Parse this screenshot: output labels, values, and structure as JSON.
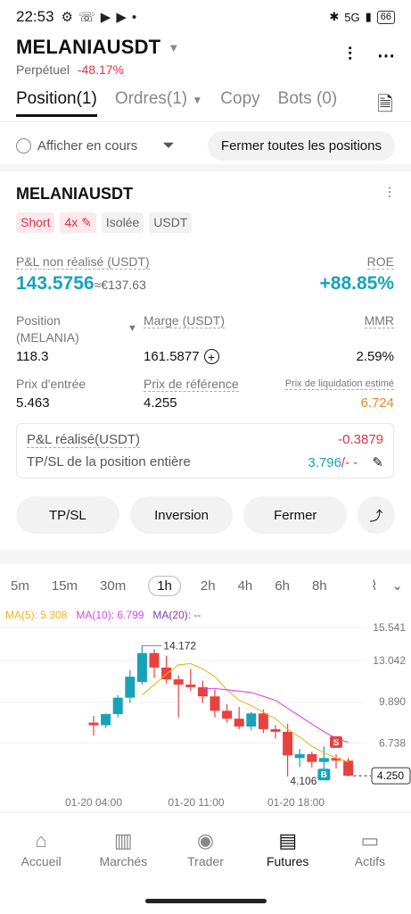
{
  "status_bar": {
    "time": "22:53",
    "signal": "5G",
    "battery": "66"
  },
  "header": {
    "symbol": "MELANIAUSDT",
    "contract_type": "Perpétuel",
    "change": "-48.17%"
  },
  "tabs": [
    "Position(1)",
    "Ordres(1)",
    "Copy",
    "Bots (0)"
  ],
  "filter": {
    "show_current_label": "Afficher en cours",
    "close_all_label": "Fermer toutes les positions"
  },
  "position": {
    "symbol": "MELANIAUSDT",
    "badges": {
      "side": "Short",
      "leverage": "4x",
      "margin_mode": "Isolée",
      "quote": "USDT"
    },
    "pnl_label": "P&L non réalisé (USDT)",
    "pnl_value": "143.5756",
    "pnl_eur": "≈€137.63",
    "roe_label": "ROE",
    "roe_value": "+88.85%",
    "size_label": "Position",
    "size_unit": "(MELANIA)",
    "size_value": "118.3",
    "margin_label": "Marge (USDT)",
    "margin_value": "161.5877",
    "mmr_label": "MMR",
    "mmr_value": "2.59%",
    "entry_label": "Prix d'entrée",
    "entry_value": "5.463",
    "mark_label": "Prix de référence",
    "mark_value": "4.255",
    "liq_label": "Prix de liquidation estimé",
    "liq_value": "6.724",
    "realized_label": "P&L réalisé(USDT)",
    "realized_value": "-0.3879",
    "tpsl_label": "TP/SL de la position entière",
    "tp_value": "3.796",
    "sl_value": "/- -"
  },
  "actions": {
    "tpsl": "TP/SL",
    "reverse": "Inversion",
    "close": "Fermer"
  },
  "intervals": [
    "5m",
    "15m",
    "30m",
    "1h",
    "2h",
    "4h",
    "6h",
    "8h"
  ],
  "active_interval": "1h",
  "ma": {
    "ma5": "MA(5): 5.308",
    "ma10": "MA(10): 6.799",
    "ma20": "MA(20): --"
  },
  "chart_data": {
    "type": "candlestick",
    "price_ticks": [
      "15.541",
      "13.042",
      "9.890",
      "6.738"
    ],
    "price_tick_values": [
      15.541,
      13.042,
      9.89,
      6.738
    ],
    "ylim": [
      3.1,
      16.3
    ],
    "time_ticks": [
      "01-20 04:00",
      "01-20 11:00",
      "01-20 18:00"
    ],
    "high_label": "14.172",
    "low_label": "4.106",
    "last_price": "4.250",
    "last_price_value": 4.25,
    "colors": {
      "up": "#17a2b8",
      "down": "#e8423f",
      "ma5": "#f0b323",
      "ma10": "#d946ef"
    },
    "candles": [
      {
        "o": 8.3,
        "h": 8.8,
        "l": 7.3,
        "c": 8.1
      },
      {
        "o": 8.1,
        "h": 9.0,
        "l": 7.9,
        "c": 8.95
      },
      {
        "o": 8.95,
        "h": 10.4,
        "l": 8.7,
        "c": 10.2
      },
      {
        "o": 10.2,
        "h": 12.3,
        "l": 9.8,
        "c": 11.8
      },
      {
        "o": 11.4,
        "h": 14.172,
        "l": 11.2,
        "c": 13.6
      },
      {
        "o": 13.6,
        "h": 13.9,
        "l": 11.7,
        "c": 12.5
      },
      {
        "o": 12.5,
        "h": 13.4,
        "l": 11.3,
        "c": 11.6
      },
      {
        "o": 11.6,
        "h": 11.9,
        "l": 8.7,
        "c": 11.2
      },
      {
        "o": 11.2,
        "h": 12.4,
        "l": 10.7,
        "c": 11.0
      },
      {
        "o": 11.0,
        "h": 11.5,
        "l": 9.8,
        "c": 10.3
      },
      {
        "o": 10.3,
        "h": 10.8,
        "l": 8.7,
        "c": 9.2
      },
      {
        "o": 9.2,
        "h": 9.7,
        "l": 8.3,
        "c": 8.6
      },
      {
        "o": 8.6,
        "h": 9.5,
        "l": 7.8,
        "c": 8.0
      },
      {
        "o": 8.0,
        "h": 9.1,
        "l": 7.7,
        "c": 9.0
      },
      {
        "o": 9.0,
        "h": 9.3,
        "l": 7.5,
        "c": 7.8
      },
      {
        "o": 7.8,
        "h": 8.1,
        "l": 7.1,
        "c": 7.6
      },
      {
        "o": 7.6,
        "h": 8.2,
        "l": 4.2,
        "c": 5.8
      },
      {
        "o": 5.6,
        "h": 6.3,
        "l": 4.9,
        "c": 5.9
      },
      {
        "o": 5.9,
        "h": 6.1,
        "l": 4.9,
        "c": 5.3
      },
      {
        "o": 5.3,
        "h": 6.5,
        "l": 4.106,
        "c": 5.6
      },
      {
        "o": 5.6,
        "h": 5.9,
        "l": 4.8,
        "c": 5.4
      },
      {
        "o": 5.4,
        "h": 5.6,
        "l": 4.2,
        "c": 4.25
      }
    ],
    "ma5_line": [
      null,
      null,
      null,
      null,
      10.4,
      11.2,
      12.0,
      12.7,
      12.8,
      12.4,
      11.8,
      10.8,
      10.0,
      9.6,
      9.1,
      8.6,
      7.8,
      7.2,
      6.5,
      6.0,
      5.6,
      5.3
    ],
    "ma10_line": [
      null,
      null,
      null,
      null,
      null,
      null,
      null,
      null,
      null,
      10.9,
      10.9,
      10.8,
      10.7,
      10.6,
      10.3,
      10.0,
      9.4,
      8.8,
      8.2,
      7.6,
      7.1,
      6.8
    ],
    "trade_markers": [
      {
        "label": "S",
        "index": 20,
        "type": "sell"
      },
      {
        "label": "B",
        "index": 19,
        "type": "buy"
      }
    ]
  },
  "nav": [
    "Accueil",
    "Marchés",
    "Trader",
    "Futures",
    "Actifs"
  ],
  "active_nav": "Futures"
}
